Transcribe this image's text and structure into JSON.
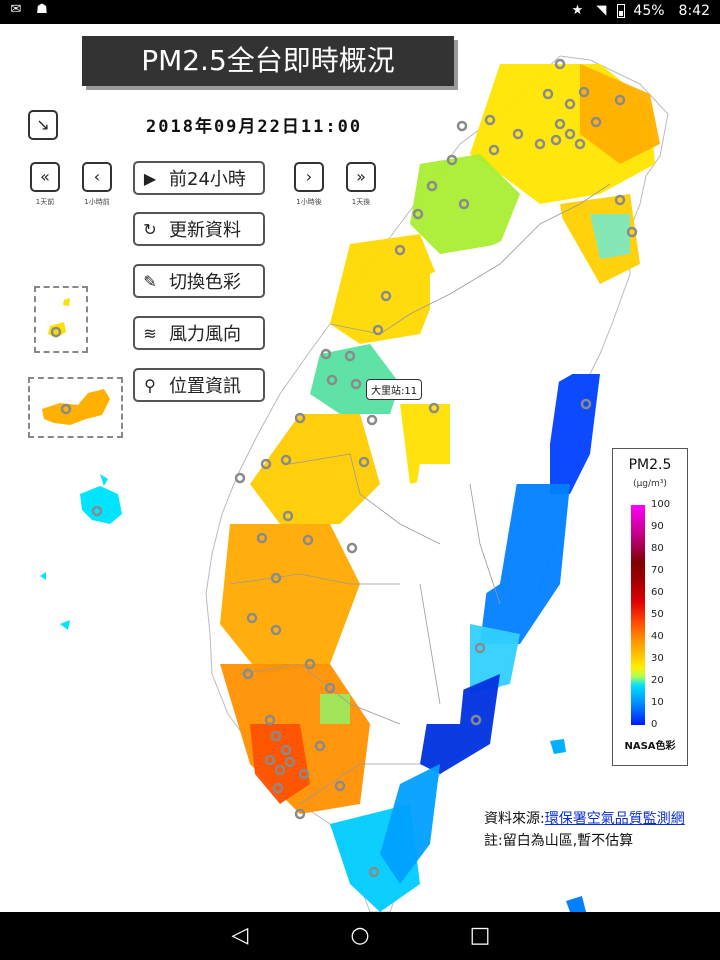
{
  "status_bar": {
    "left_icons": [
      "mail-icon",
      "incognito-icon"
    ],
    "right_icons": [
      "star-icon",
      "wifi-icon",
      "battery-icon"
    ],
    "battery": "45%",
    "time": "8:42"
  },
  "header": {
    "title": "PM2.5全台即時概況",
    "datetime": "2018年09月22日11:00"
  },
  "controls": {
    "collapse_icon": "arrow-down-right-icon",
    "prev_day_glyph": "«",
    "prev_day_label": "1天前",
    "prev_hour_glyph": "‹",
    "prev_hour_label": "1小時前",
    "next_hour_glyph": "›",
    "next_hour_label": "1小時後",
    "next_day_glyph": "»",
    "next_day_label": "1天後"
  },
  "menu": [
    {
      "icon": "play-circle-icon",
      "glyph": "▶",
      "label": "前24小時"
    },
    {
      "icon": "refresh-icon",
      "glyph": "↻",
      "label": "更新資料"
    },
    {
      "icon": "paint-brush-icon",
      "glyph": "✎",
      "label": "切換色彩"
    },
    {
      "icon": "wind-icon",
      "glyph": "≋",
      "label": "風力風向"
    },
    {
      "icon": "map-pin-icon",
      "glyph": "⚲",
      "label": "位置資訊"
    }
  ],
  "station_tooltip": "大里站:11",
  "legend": {
    "title": "PM2.5",
    "unit": "(μg/m³)",
    "ticks": [
      "100",
      "90",
      "80",
      "70",
      "60",
      "50",
      "40",
      "30",
      "20",
      "10",
      "0"
    ],
    "scheme": "NASA色彩"
  },
  "source": {
    "prefix": "資料來源:",
    "link": "環保署空氣品質監測網",
    "note": "註:留白為山區,暫不估算"
  },
  "nav_bar": {
    "back_glyph": "◁",
    "home_glyph": "○",
    "recents_glyph": "□"
  },
  "colors": {
    "title_bg": "#333333",
    "link": "#0a2fd1",
    "station_marker": "#8a8a8a"
  }
}
